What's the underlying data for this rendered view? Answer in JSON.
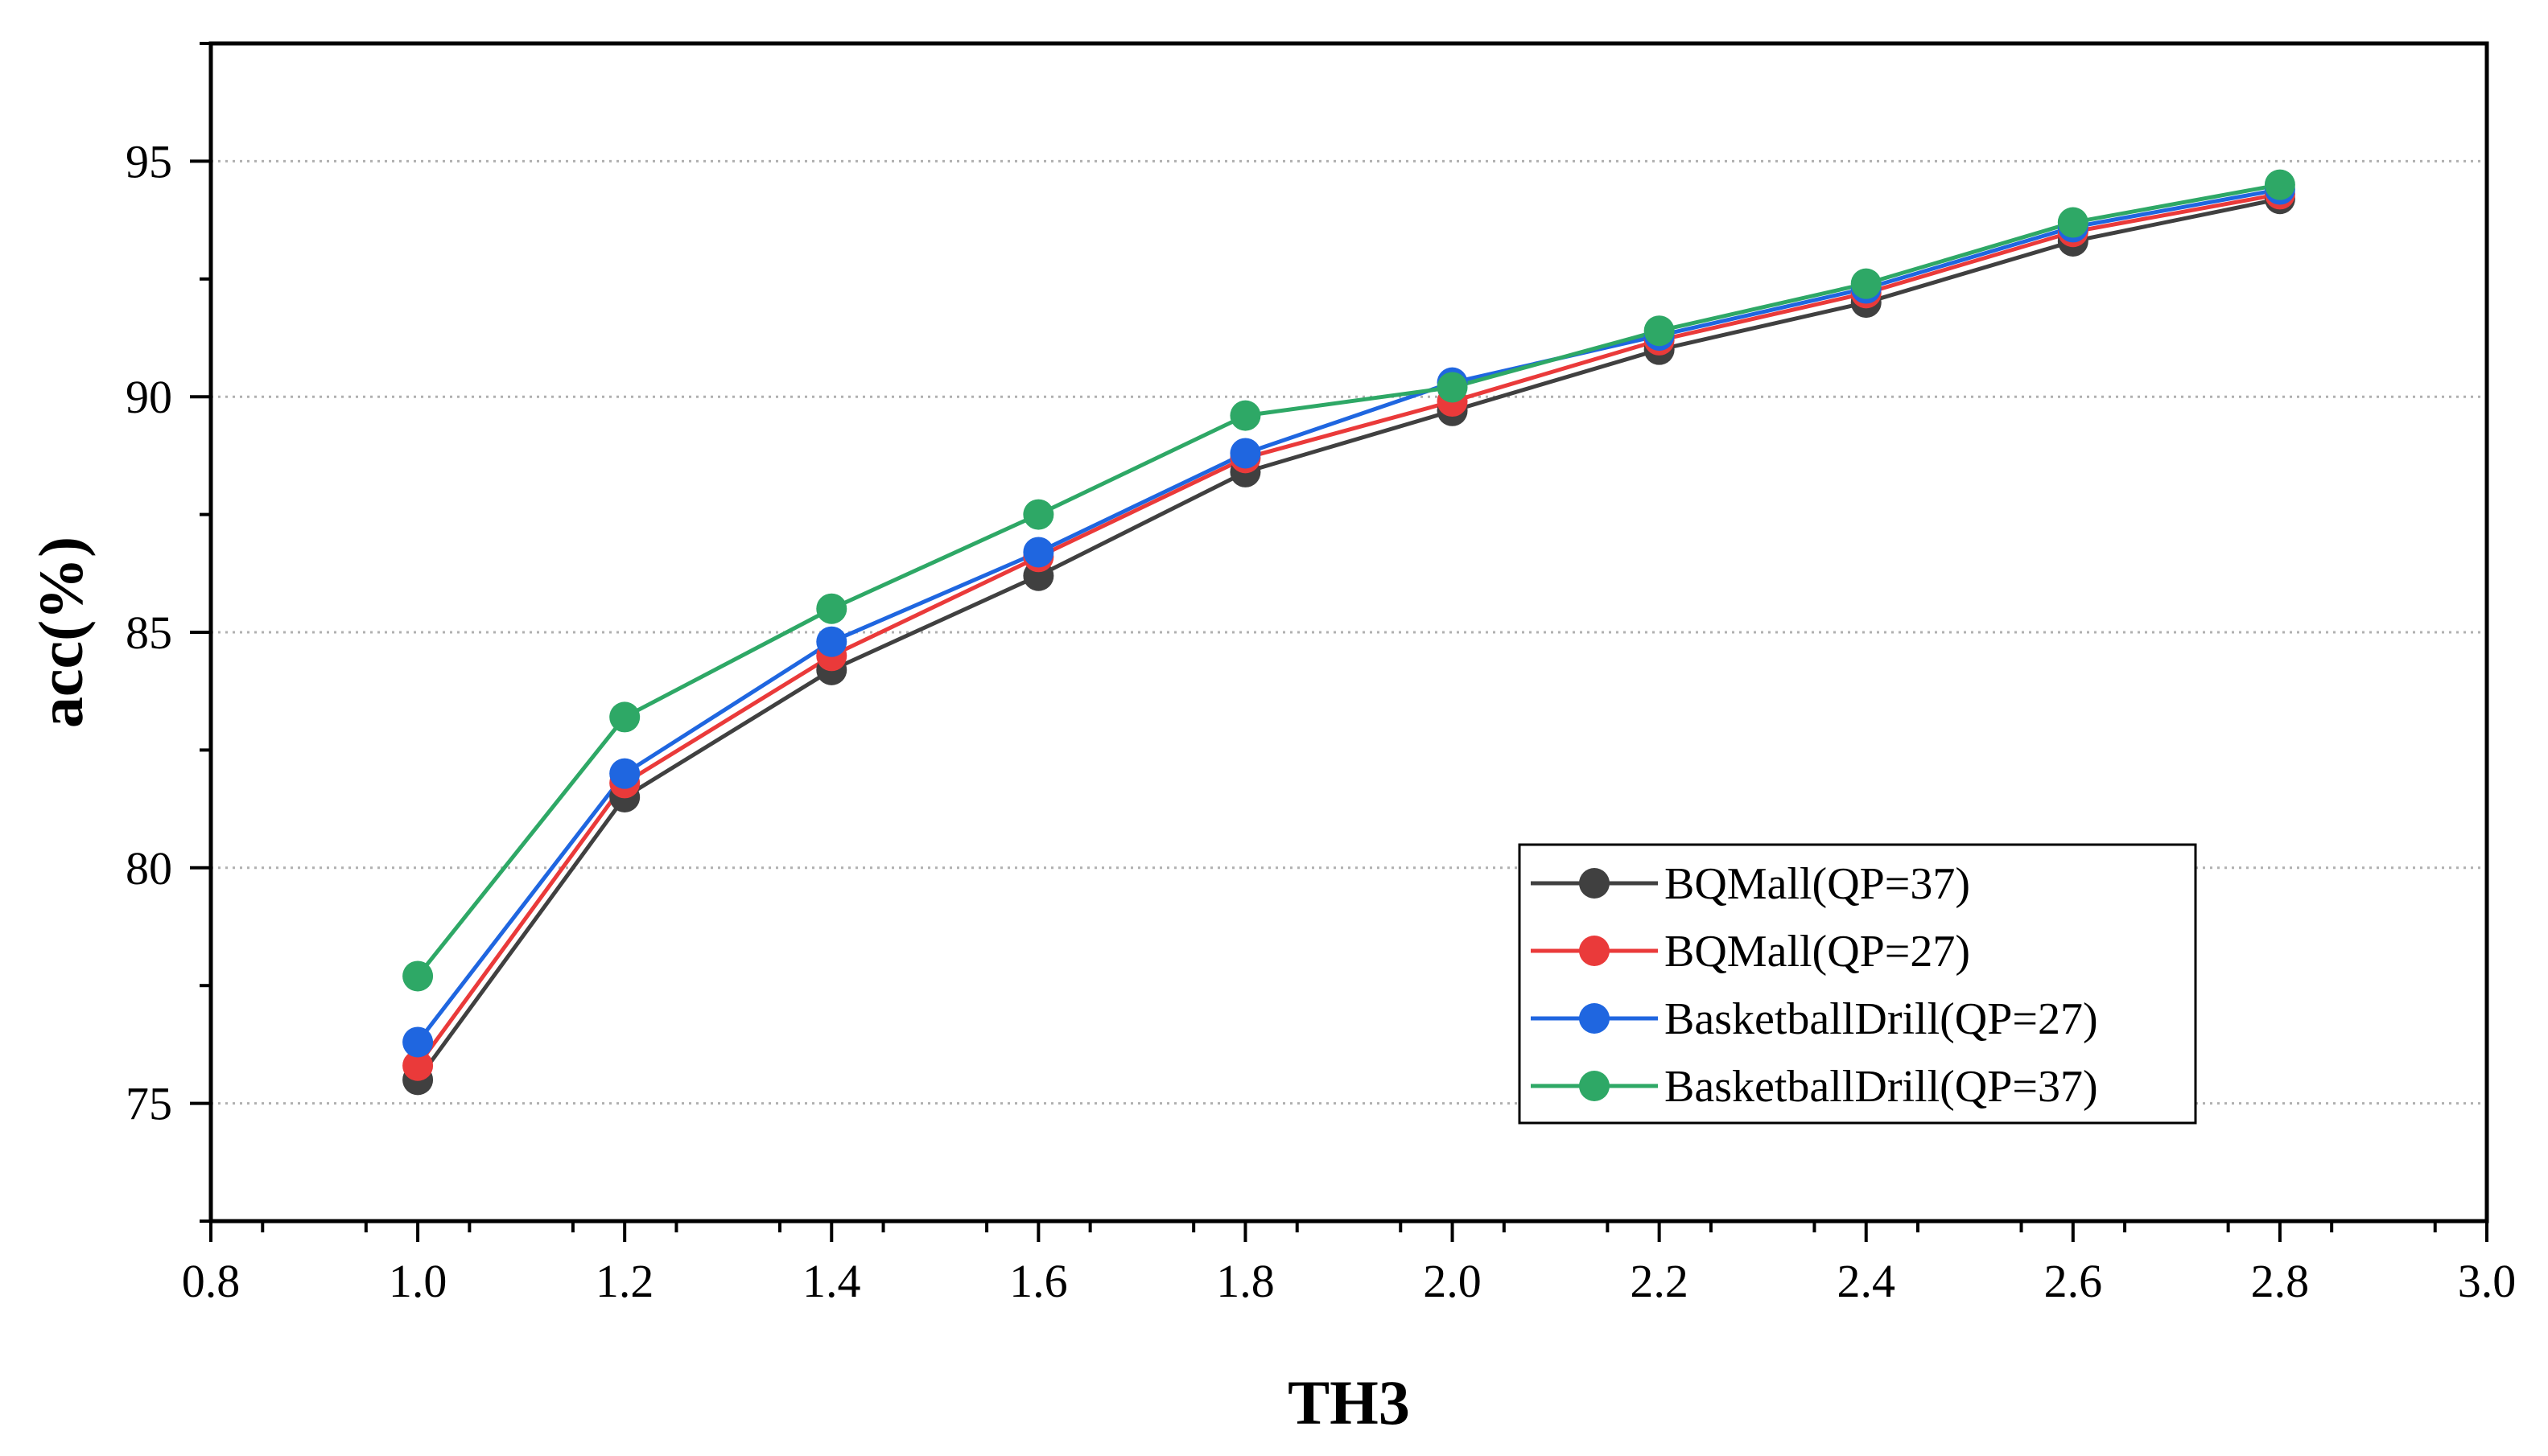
{
  "chart_data": {
    "type": "line",
    "title": "",
    "xlabel": "TH3",
    "ylabel": "acc(%)",
    "xlim": [
      0.8,
      3.0
    ],
    "ylim": [
      72.5,
      97.5
    ],
    "xticks": [
      "0.8",
      "1.0",
      "1.2",
      "1.4",
      "1.6",
      "1.8",
      "2.0",
      "2.2",
      "2.4",
      "2.6",
      "2.8",
      "3.0"
    ],
    "yticks": [
      "75",
      "80",
      "85",
      "90",
      "95"
    ],
    "grid": "horizontal dotted",
    "legend_position": "bottom-right",
    "x": [
      1.0,
      1.2,
      1.4,
      1.6,
      1.8,
      2.0,
      2.2,
      2.4,
      2.6,
      2.8
    ],
    "series": [
      {
        "name": "BQMall(QP=37)",
        "color": "#404040",
        "values": [
          75.5,
          81.5,
          84.2,
          86.2,
          88.4,
          89.7,
          91.0,
          92.0,
          93.3,
          94.2
        ]
      },
      {
        "name": "BQMall(QP=27)",
        "color": "#ea3a3a",
        "values": [
          75.8,
          81.8,
          84.5,
          86.6,
          88.7,
          89.9,
          91.2,
          92.2,
          93.5,
          94.3
        ]
      },
      {
        "name": "BasketballDrill(QP=27)",
        "color": "#1f66e0",
        "values": [
          76.3,
          82.0,
          84.8,
          86.7,
          88.8,
          90.3,
          91.3,
          92.3,
          93.6,
          94.4
        ]
      },
      {
        "name": "BasketballDrill(QP=37)",
        "color": "#2ea866",
        "values": [
          77.7,
          83.2,
          85.5,
          87.5,
          89.6,
          90.2,
          91.4,
          92.4,
          93.7,
          94.5
        ]
      }
    ]
  }
}
